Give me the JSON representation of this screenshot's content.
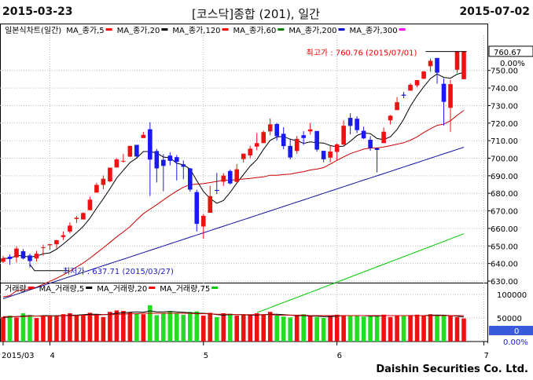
{
  "header": {
    "start_date": "2015-03-23",
    "title": "[코스닥]종합 (201), 일간",
    "end_date": "2015-07-02"
  },
  "legend": {
    "price_series": [
      {
        "label": "일본식차트(일간)",
        "color": "#000000",
        "marker": false
      },
      {
        "label": "MA_종가,5",
        "color": "#ff0000",
        "marker": true
      },
      {
        "label": "MA_종가,20",
        "color": "#000000",
        "marker": true
      },
      {
        "label": "MA_종가,120",
        "color": "#ff0000",
        "marker": true
      },
      {
        "label": "MA_종가,60",
        "color": "#008000",
        "marker": true
      },
      {
        "label": "MA_종가,200",
        "color": "#0000cc",
        "marker": true
      },
      {
        "label": "MA_종가,300",
        "color": "#ff00ff",
        "marker": true
      }
    ],
    "volume_series": [
      {
        "label": "거래량",
        "color": "#ff0000",
        "marker": true
      },
      {
        "label": "MA_거래량,5",
        "color": "#000000",
        "marker": true
      },
      {
        "label": "MA_거래량,20",
        "color": "#ff0000",
        "marker": true
      },
      {
        "label": "MA_거래량,75",
        "color": "#00cc00",
        "marker": true
      }
    ]
  },
  "annotations": {
    "high": "최고가 : 760.76 (2015/07/01)",
    "low": "최저가 : 637.71 (2015/03/27)",
    "current_value": "760.67",
    "change_pct": "0.00%",
    "volume_current": "0",
    "volume_change": "0.00%"
  },
  "footer": {
    "brand": "Daishin Securities Co. Ltd."
  },
  "colors": {
    "up": "#ee1111",
    "down": "#1a1aee",
    "vol_up": "#ee1111",
    "vol_down": "#22dd22",
    "ma20": "#000000",
    "ma60": "#cc0000",
    "ma120": "#1010a0",
    "ma200": "#00cc00"
  },
  "chart_data": {
    "type": "candlestick",
    "price_axis": {
      "min": 630,
      "max": 770,
      "ticks": [
        630,
        640,
        650,
        660,
        670,
        680,
        690,
        700,
        710,
        720,
        730,
        740,
        750
      ],
      "tick_labels": [
        "630.00",
        "640.00",
        "650.00",
        "660.00",
        "670.00",
        "680.00",
        "690.00",
        "700.00",
        "710.00",
        "720.00",
        "730.00",
        "740.00",
        "750.00"
      ]
    },
    "volume_axis": {
      "min": 0,
      "max": 120000,
      "ticks": [
        50000,
        100000
      ],
      "tick_labels": [
        "50000",
        "100000"
      ]
    },
    "x_labels": [
      {
        "index": 0,
        "label": "2015/03"
      },
      {
        "index": 7,
        "label": "4"
      },
      {
        "index": 30,
        "label": "5"
      },
      {
        "index": 50,
        "label": "6"
      },
      {
        "index": 72,
        "label": "7"
      }
    ],
    "candles": [
      {
        "o": 641.0,
        "h": 644.3,
        "l": 640.3,
        "c": 643.0
      },
      {
        "o": 643.9,
        "h": 645.2,
        "l": 639.3,
        "c": 642.6
      },
      {
        "o": 643.5,
        "h": 649.8,
        "l": 640.5,
        "c": 648.5
      },
      {
        "o": 647.0,
        "h": 648.2,
        "l": 642.4,
        "c": 642.9
      },
      {
        "o": 644.6,
        "h": 645.6,
        "l": 637.7,
        "c": 641.4
      },
      {
        "o": 642.9,
        "h": 647.3,
        "l": 641.2,
        "c": 645.6
      },
      {
        "o": 649.3,
        "h": 650.8,
        "l": 644.4,
        "c": 649.3
      },
      {
        "o": 650.4,
        "h": 651.0,
        "l": 647.9,
        "c": 651.0
      },
      {
        "o": 651.0,
        "h": 653.5,
        "l": 648.6,
        "c": 653.3
      },
      {
        "o": 655.1,
        "h": 658.3,
        "l": 653.4,
        "c": 656.1
      },
      {
        "o": 658.2,
        "h": 663.5,
        "l": 657.2,
        "c": 661.6
      },
      {
        "o": 665.4,
        "h": 667.2,
        "l": 663.1,
        "c": 666.1
      },
      {
        "o": 665.1,
        "h": 669.1,
        "l": 665.1,
        "c": 668.8
      },
      {
        "o": 670.4,
        "h": 678.1,
        "l": 670.4,
        "c": 676.4
      },
      {
        "o": 680.4,
        "h": 686.0,
        "l": 680.4,
        "c": 684.8
      },
      {
        "o": 684.8,
        "h": 690.1,
        "l": 682.3,
        "c": 688.3
      },
      {
        "o": 686.8,
        "h": 694.6,
        "l": 686.3,
        "c": 694.6
      },
      {
        "o": 694.7,
        "h": 700.0,
        "l": 694.7,
        "c": 699.3
      },
      {
        "o": 698.5,
        "h": 702.4,
        "l": 697.5,
        "c": 698.5
      },
      {
        "o": 700.9,
        "h": 707.0,
        "l": 700.6,
        "c": 707.0
      },
      {
        "o": 707.6,
        "h": 707.6,
        "l": 700.5,
        "c": 701.0
      },
      {
        "o": 711.5,
        "h": 715.0,
        "l": 711.5,
        "c": 713.3
      },
      {
        "o": 716.5,
        "h": 720.5,
        "l": 678.5,
        "c": 699.2
      },
      {
        "o": 704.1,
        "h": 705.3,
        "l": 686.2,
        "c": 694.2
      },
      {
        "o": 699.1,
        "h": 702.3,
        "l": 681.2,
        "c": 695.6
      },
      {
        "o": 701.5,
        "h": 703.4,
        "l": 695.9,
        "c": 698.5
      },
      {
        "o": 700.6,
        "h": 701.8,
        "l": 687.3,
        "c": 697.9
      },
      {
        "o": 696.5,
        "h": 698.7,
        "l": 688.0,
        "c": 695.1
      },
      {
        "o": 694.2,
        "h": 694.4,
        "l": 680.8,
        "c": 682.1
      },
      {
        "o": 680.7,
        "h": 682.1,
        "l": 658.2,
        "c": 662.6
      },
      {
        "o": 661.1,
        "h": 668.3,
        "l": 654.1,
        "c": 667.2
      },
      {
        "o": 668.9,
        "h": 684.3,
        "l": 668.9,
        "c": 678.4
      },
      {
        "o": 681.9,
        "h": 691.6,
        "l": 679.6,
        "c": 681.4
      },
      {
        "o": 686.6,
        "h": 691.5,
        "l": 684.2,
        "c": 690.1
      },
      {
        "o": 692.7,
        "h": 693.6,
        "l": 685.1,
        "c": 685.6
      },
      {
        "o": 686.5,
        "h": 696.6,
        "l": 686.5,
        "c": 693.7
      },
      {
        "o": 699.5,
        "h": 702.7,
        "l": 697.5,
        "c": 702.6
      },
      {
        "o": 701.6,
        "h": 707.1,
        "l": 699.9,
        "c": 705.4
      },
      {
        "o": 706.6,
        "h": 714.4,
        "l": 704.6,
        "c": 708.6
      },
      {
        "o": 708.6,
        "h": 715.8,
        "l": 708.6,
        "c": 714.9
      },
      {
        "o": 715.3,
        "h": 722.6,
        "l": 713.0,
        "c": 719.3
      },
      {
        "o": 719.5,
        "h": 720.1,
        "l": 710.2,
        "c": 712.5
      },
      {
        "o": 713.9,
        "h": 717.7,
        "l": 705.1,
        "c": 706.9
      },
      {
        "o": 707.0,
        "h": 711.2,
        "l": 699.3,
        "c": 700.4
      },
      {
        "o": 704.1,
        "h": 712.7,
        "l": 702.5,
        "c": 711.0
      },
      {
        "o": 713.1,
        "h": 715.4,
        "l": 707.5,
        "c": 711.5
      },
      {
        "o": 715.3,
        "h": 720.1,
        "l": 713.5,
        "c": 716.4
      },
      {
        "o": 715.5,
        "h": 715.5,
        "l": 703.8,
        "c": 704.9
      },
      {
        "o": 704.2,
        "h": 704.2,
        "l": 697.7,
        "c": 699.4
      },
      {
        "o": 700.3,
        "h": 707.2,
        "l": 697.7,
        "c": 703.8
      },
      {
        "o": 703.6,
        "h": 708.5,
        "l": 698.8,
        "c": 707.9
      },
      {
        "o": 707.8,
        "h": 721.5,
        "l": 707.3,
        "c": 718.5
      },
      {
        "o": 723.0,
        "h": 725.6,
        "l": 713.6,
        "c": 718.4
      },
      {
        "o": 722.5,
        "h": 723.9,
        "l": 714.3,
        "c": 716.0
      },
      {
        "o": 715.6,
        "h": 718.0,
        "l": 710.9,
        "c": 711.3
      },
      {
        "o": 710.5,
        "h": 712.5,
        "l": 704.2,
        "c": 705.8
      },
      {
        "o": 705.7,
        "h": 706.2,
        "l": 691.9,
        "c": 704.7
      },
      {
        "o": 708.6,
        "h": 717.5,
        "l": 708.6,
        "c": 715.1
      },
      {
        "o": 721.6,
        "h": 724.6,
        "l": 719.3,
        "c": 724.2
      },
      {
        "o": 727.4,
        "h": 734.7,
        "l": 727.4,
        "c": 731.9
      },
      {
        "o": 736.2,
        "h": 737.8,
        "l": 734.2,
        "c": 735.6
      },
      {
        "o": 738.5,
        "h": 742.7,
        "l": 738.5,
        "c": 741.8
      },
      {
        "o": 741.5,
        "h": 744.6,
        "l": 740.4,
        "c": 744.5
      },
      {
        "o": 745.3,
        "h": 749.7,
        "l": 745.0,
        "c": 749.4
      },
      {
        "o": 752.4,
        "h": 756.8,
        "l": 749.3,
        "c": 755.5
      },
      {
        "o": 757.1,
        "h": 757.1,
        "l": 742.5,
        "c": 748.7
      },
      {
        "o": 742.4,
        "h": 745.5,
        "l": 718.5,
        "c": 732.1
      },
      {
        "o": 728.7,
        "h": 744.8,
        "l": 714.9,
        "c": 742.2
      },
      {
        "o": 750.4,
        "h": 760.8,
        "l": 748.6,
        "c": 760.7
      },
      {
        "o": 745.0,
        "h": 760.8,
        "l": 745.0,
        "c": 760.7
      }
    ],
    "volumes": [
      52000,
      55000,
      51000,
      60000,
      56000,
      50000,
      54000,
      55000,
      53000,
      58000,
      60000,
      56000,
      57000,
      61000,
      58000,
      52000,
      63000,
      66000,
      65000,
      62000,
      60000,
      58000,
      77000,
      56000,
      60000,
      64000,
      61000,
      57000,
      63000,
      64000,
      55000,
      61000,
      52000,
      60000,
      59000,
      55000,
      57000,
      56000,
      60000,
      57000,
      63000,
      55000,
      53000,
      51000,
      56000,
      58000,
      54000,
      52000,
      50000,
      55000,
      57000,
      56000,
      54000,
      55000,
      53000,
      54000,
      56000,
      57000,
      52000,
      55000,
      54000,
      56000,
      57000,
      55000,
      58000,
      57000,
      56000,
      55000,
      52000,
      49000
    ],
    "ma_volume_5": [
      51000,
      52000,
      53000,
      54000,
      55000,
      54000,
      55000,
      55000,
      54000,
      55000,
      56000,
      56000,
      57000,
      58000,
      58000,
      57000,
      58000,
      60000,
      61000,
      62000,
      63000,
      62000,
      65000,
      63000,
      63000,
      64000,
      63000,
      62000,
      61000,
      60000,
      60000,
      59000,
      57000,
      56000,
      57000,
      57000,
      57000,
      56000,
      56000,
      57000,
      58000,
      58000,
      57000,
      56000,
      55000,
      55000,
      54000,
      54000,
      53000,
      53000,
      54000,
      55000,
      55000,
      55000,
      55000,
      54000,
      54000,
      55000,
      55000,
      55000,
      55000,
      55000,
      55000,
      55000,
      56000,
      56000,
      56000,
      55000,
      54000,
      52000
    ],
    "ma_volume_20": [
      53000,
      53000,
      53000,
      53000,
      54000,
      54000,
      54000,
      54000,
      55000,
      55000,
      55000,
      55000,
      56000,
      56000,
      56000,
      57000,
      57000,
      58000,
      58000,
      59000,
      59000,
      60000,
      60000,
      60000,
      60000,
      60000,
      60000,
      60000,
      60000,
      59000,
      59000,
      59000,
      58000,
      58000,
      58000,
      57000,
      57000,
      57000,
      57000,
      57000,
      57000,
      56000,
      56000,
      56000,
      56000,
      56000,
      55000,
      55000,
      55000,
      55000,
      55000,
      55000,
      55000,
      55000,
      55000,
      55000,
      55000,
      55000,
      55000,
      55000,
      55000,
      55000,
      55000,
      55000,
      55000,
      55000,
      55000,
      55000,
      55000,
      55000
    ]
  }
}
